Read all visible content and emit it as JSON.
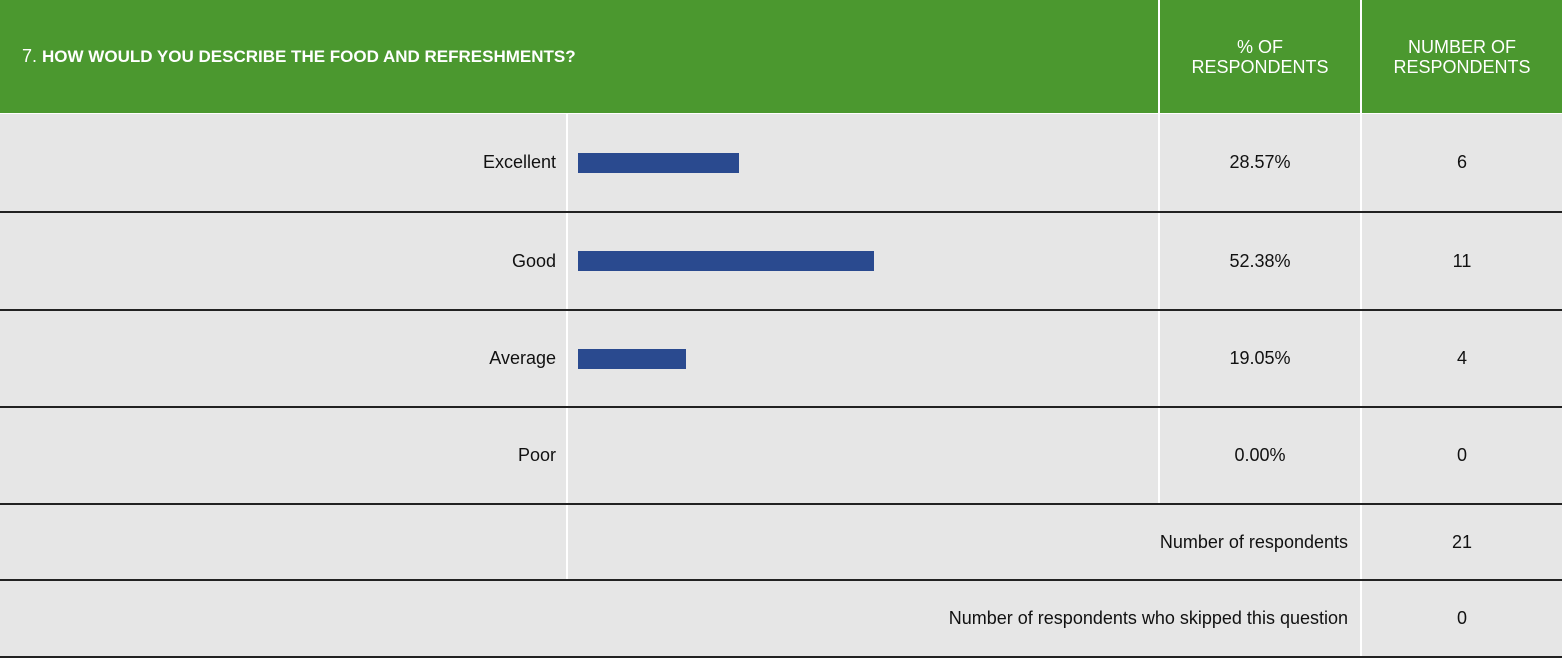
{
  "header": {
    "number": "7.",
    "question": "HOW WOULD YOU DESCRIBE THE FOOD AND REFRESHMENTS?",
    "percent_heading": "% OF RESPONDENTS",
    "count_heading": "NUMBER OF RESPONDENTS"
  },
  "bar_color": "#2a4a8f",
  "rows": [
    {
      "label": "Excellent",
      "percent": 28.57,
      "percent_label": "28.57%",
      "count": 6
    },
    {
      "label": "Good",
      "percent": 52.38,
      "percent_label": "52.38%",
      "count": 11
    },
    {
      "label": "Average",
      "percent": 19.05,
      "percent_label": "19.05%",
      "count": 4
    },
    {
      "label": "Poor",
      "percent": 0,
      "percent_label": "0.00%",
      "count": 0
    }
  ],
  "summary": [
    {
      "label": "Number of respondents",
      "count": 21
    },
    {
      "label": "Number of respondents who skipped this question",
      "count": 0
    }
  ]
}
